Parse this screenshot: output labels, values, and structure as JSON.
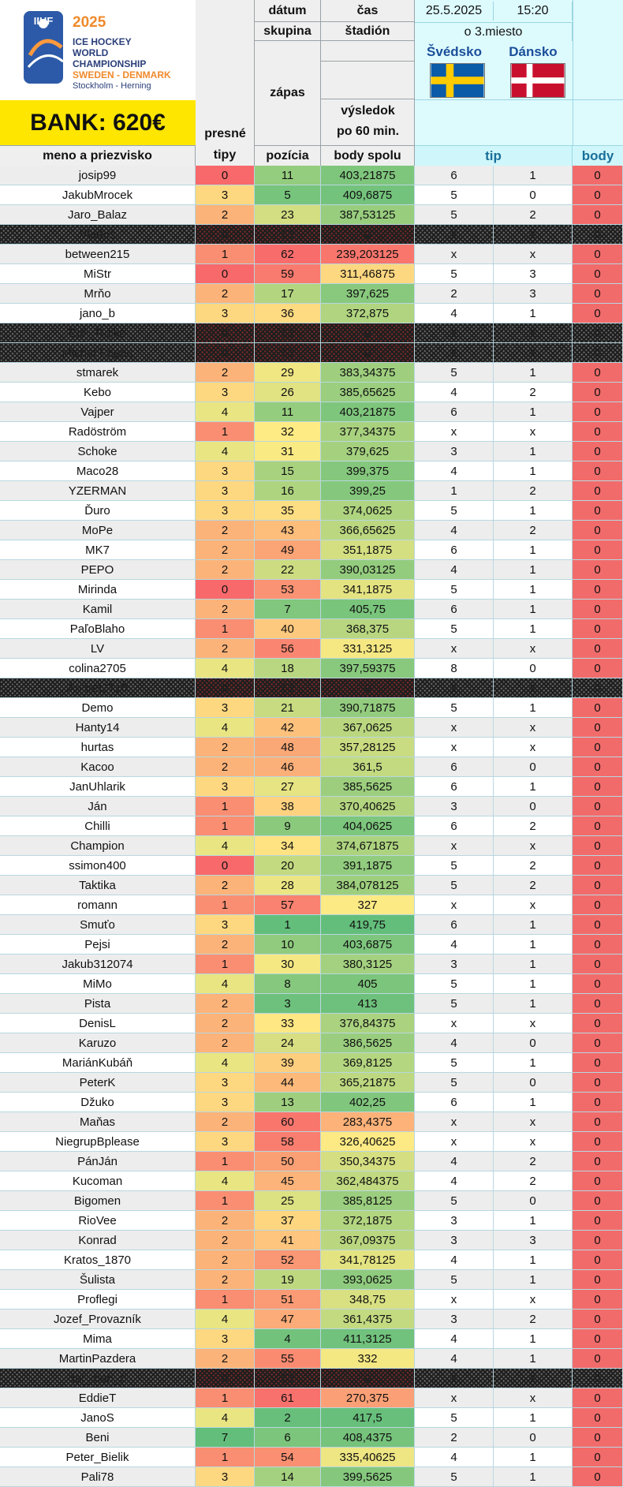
{
  "logo": {
    "org": "IIHF",
    "year": "2025",
    "line1": "ICE HOCKEY",
    "line2": "WORLD",
    "line3": "CHAMPIONSHIP",
    "line4": "SWEDEN - DENMARK",
    "line5": "Stockholm - Herning"
  },
  "bank": "BANK: 620€",
  "header": {
    "datum_label": "dátum",
    "cas_label": "čas",
    "skupina_label": "skupina",
    "stadion_label": "štadión",
    "zapas_label": "zápas",
    "vysledok_label_1": "výsledok",
    "vysledok_label_2": "po 60 min.",
    "presne_label_1": "presné",
    "presne_label_2": "tipy",
    "date_value": "25.5.2025",
    "time_value": "15:20",
    "group_value": "o 3.miesto",
    "team1": "Švédsko",
    "team2": "Dánsko",
    "col_name": "meno a priezvisko",
    "col_tipy": "tipy",
    "col_pozicia": "pozícia",
    "col_body_spolu": "body spolu",
    "col_tip": "tip",
    "col_body": "body"
  },
  "colors": {
    "bank_bg": "#ffe600",
    "body_red": "#f26b6b",
    "header_cyan": "#cff7fb",
    "header_text": "#1a6f9a",
    "sweden_blue": "#0a5ba8",
    "sweden_yellow": "#fecb00",
    "denmark_red": "#c8102e"
  },
  "rows": [
    {
      "name": "josip99",
      "exact": "0",
      "pos": "11",
      "pts": "403,21875",
      "t1": "6",
      "t2": "1",
      "body": "0"
    },
    {
      "name": "JakubMrocek",
      "exact": "3",
      "pos": "5",
      "pts": "409,6875",
      "t1": "5",
      "t2": "0",
      "body": "0"
    },
    {
      "name": "Jaro_Balaz",
      "exact": "2",
      "pos": "23",
      "pts": "387,53125",
      "t1": "5",
      "t2": "2",
      "body": "0"
    },
    {
      "name": "Vladoš",
      "exact": "0",
      "pos": "63",
      "pts": "0",
      "t1": "x",
      "t2": "x",
      "body": "0",
      "checker": true
    },
    {
      "name": "between215",
      "exact": "1",
      "pos": "62",
      "pts": "239,203125",
      "t1": "x",
      "t2": "x",
      "body": "0"
    },
    {
      "name": "MiStr",
      "exact": "0",
      "pos": "59",
      "pts": "311,46875",
      "t1": "5",
      "t2": "3",
      "body": "0"
    },
    {
      "name": "Mrňo",
      "exact": "2",
      "pos": "17",
      "pts": "397,625",
      "t1": "2",
      "t2": "3",
      "body": "0"
    },
    {
      "name": "jano_b",
      "exact": "3",
      "pos": "36",
      "pts": "372,875",
      "t1": "4",
      "t2": "1",
      "body": "0"
    },
    {
      "name": "Erik_Rojko",
      "exact": "0",
      "pos": "63",
      "pts": "0",
      "t1": "x",
      "t2": "x",
      "body": "0",
      "checker": true
    },
    {
      "name": "Michal Pagac",
      "exact": "0",
      "pos": "63",
      "pts": "0",
      "t1": "x",
      "t2": "x",
      "body": "0",
      "checker": true
    },
    {
      "name": "stmarek",
      "exact": "2",
      "pos": "29",
      "pts": "383,34375",
      "t1": "5",
      "t2": "1",
      "body": "0"
    },
    {
      "name": "Kebo",
      "exact": "3",
      "pos": "26",
      "pts": "385,65625",
      "t1": "4",
      "t2": "2",
      "body": "0"
    },
    {
      "name": "Vajper",
      "exact": "4",
      "pos": "11",
      "pts": "403,21875",
      "t1": "6",
      "t2": "1",
      "body": "0"
    },
    {
      "name": "Radöström",
      "exact": "1",
      "pos": "32",
      "pts": "377,34375",
      "t1": "x",
      "t2": "x",
      "body": "0"
    },
    {
      "name": "Schoke",
      "exact": "4",
      "pos": "31",
      "pts": "379,625",
      "t1": "3",
      "t2": "1",
      "body": "0"
    },
    {
      "name": "Maco28",
      "exact": "3",
      "pos": "15",
      "pts": "399,375",
      "t1": "4",
      "t2": "1",
      "body": "0"
    },
    {
      "name": "YZERMAN",
      "exact": "3",
      "pos": "16",
      "pts": "399,25",
      "t1": "1",
      "t2": "2",
      "body": "0"
    },
    {
      "name": "Ďuro",
      "exact": "3",
      "pos": "35",
      "pts": "374,0625",
      "t1": "5",
      "t2": "1",
      "body": "0"
    },
    {
      "name": "MoPe",
      "exact": "2",
      "pos": "43",
      "pts": "366,65625",
      "t1": "4",
      "t2": "2",
      "body": "0"
    },
    {
      "name": "MK7",
      "exact": "2",
      "pos": "49",
      "pts": "351,1875",
      "t1": "6",
      "t2": "1",
      "body": "0"
    },
    {
      "name": "PEPO",
      "exact": "2",
      "pos": "22",
      "pts": "390,03125",
      "t1": "4",
      "t2": "1",
      "body": "0"
    },
    {
      "name": "Mirinda",
      "exact": "0",
      "pos": "53",
      "pts": "341,1875",
      "t1": "5",
      "t2": "1",
      "body": "0"
    },
    {
      "name": "Kamil",
      "exact": "2",
      "pos": "7",
      "pts": "405,75",
      "t1": "6",
      "t2": "1",
      "body": "0"
    },
    {
      "name": "PaľoBlaho",
      "exact": "1",
      "pos": "40",
      "pts": "368,375",
      "t1": "5",
      "t2": "1",
      "body": "0"
    },
    {
      "name": "LV",
      "exact": "2",
      "pos": "56",
      "pts": "331,3125",
      "t1": "x",
      "t2": "x",
      "body": "0"
    },
    {
      "name": "colina2705",
      "exact": "4",
      "pos": "18",
      "pts": "397,59375",
      "t1": "8",
      "t2": "0",
      "body": "0"
    },
    {
      "name": "Andrej2710",
      "exact": "0",
      "pos": "63",
      "pts": "0",
      "t1": "x",
      "t2": "x",
      "body": "0",
      "checker": true
    },
    {
      "name": "Demo",
      "exact": "3",
      "pos": "21",
      "pts": "390,71875",
      "t1": "5",
      "t2": "1",
      "body": "0"
    },
    {
      "name": "Hanty14",
      "exact": "4",
      "pos": "42",
      "pts": "367,0625",
      "t1": "x",
      "t2": "x",
      "body": "0"
    },
    {
      "name": "hurtas",
      "exact": "2",
      "pos": "48",
      "pts": "357,28125",
      "t1": "x",
      "t2": "x",
      "body": "0"
    },
    {
      "name": "Kacoo",
      "exact": "2",
      "pos": "46",
      "pts": "361,5",
      "t1": "6",
      "t2": "0",
      "body": "0"
    },
    {
      "name": "JanUhlarik",
      "exact": "3",
      "pos": "27",
      "pts": "385,5625",
      "t1": "6",
      "t2": "1",
      "body": "0"
    },
    {
      "name": "Ján",
      "exact": "1",
      "pos": "38",
      "pts": "370,40625",
      "t1": "3",
      "t2": "0",
      "body": "0"
    },
    {
      "name": "Chilli",
      "exact": "1",
      "pos": "9",
      "pts": "404,0625",
      "t1": "6",
      "t2": "2",
      "body": "0"
    },
    {
      "name": "Champion",
      "exact": "4",
      "pos": "34",
      "pts": "374,671875",
      "t1": "x",
      "t2": "x",
      "body": "0"
    },
    {
      "name": "ssimon400",
      "exact": "0",
      "pos": "20",
      "pts": "391,1875",
      "t1": "5",
      "t2": "2",
      "body": "0"
    },
    {
      "name": "Taktika",
      "exact": "2",
      "pos": "28",
      "pts": "384,078125",
      "t1": "5",
      "t2": "2",
      "body": "0"
    },
    {
      "name": "romann",
      "exact": "1",
      "pos": "57",
      "pts": "327",
      "t1": "x",
      "t2": "x",
      "body": "0"
    },
    {
      "name": "Smuťo",
      "exact": "3",
      "pos": "1",
      "pts": "419,75",
      "t1": "6",
      "t2": "1",
      "body": "0"
    },
    {
      "name": "Pejsi",
      "exact": "2",
      "pos": "10",
      "pts": "403,6875",
      "t1": "4",
      "t2": "1",
      "body": "0"
    },
    {
      "name": "Jakub312074",
      "exact": "1",
      "pos": "30",
      "pts": "380,3125",
      "t1": "3",
      "t2": "1",
      "body": "0"
    },
    {
      "name": "MiMo",
      "exact": "4",
      "pos": "8",
      "pts": "405",
      "t1": "5",
      "t2": "1",
      "body": "0"
    },
    {
      "name": "Pista",
      "exact": "2",
      "pos": "3",
      "pts": "413",
      "t1": "5",
      "t2": "1",
      "body": "0"
    },
    {
      "name": "DenisL",
      "exact": "2",
      "pos": "33",
      "pts": "376,84375",
      "t1": "x",
      "t2": "x",
      "body": "0"
    },
    {
      "name": "Karuzo",
      "exact": "2",
      "pos": "24",
      "pts": "386,5625",
      "t1": "4",
      "t2": "0",
      "body": "0"
    },
    {
      "name": "MariánKubáň",
      "exact": "4",
      "pos": "39",
      "pts": "369,8125",
      "t1": "5",
      "t2": "1",
      "body": "0"
    },
    {
      "name": "PeterK",
      "exact": "3",
      "pos": "44",
      "pts": "365,21875",
      "t1": "5",
      "t2": "0",
      "body": "0"
    },
    {
      "name": "Džuko",
      "exact": "3",
      "pos": "13",
      "pts": "402,25",
      "t1": "6",
      "t2": "1",
      "body": "0"
    },
    {
      "name": "Maňas",
      "exact": "2",
      "pos": "60",
      "pts": "283,4375",
      "t1": "x",
      "t2": "x",
      "body": "0"
    },
    {
      "name": "NiegrupBplease",
      "exact": "3",
      "pos": "58",
      "pts": "326,40625",
      "t1": "x",
      "t2": "x",
      "body": "0"
    },
    {
      "name": "PánJán",
      "exact": "1",
      "pos": "50",
      "pts": "350,34375",
      "t1": "4",
      "t2": "2",
      "body": "0"
    },
    {
      "name": "Kucoman",
      "exact": "4",
      "pos": "45",
      "pts": "362,484375",
      "t1": "4",
      "t2": "2",
      "body": "0"
    },
    {
      "name": "Bigomen",
      "exact": "1",
      "pos": "25",
      "pts": "385,8125",
      "t1": "5",
      "t2": "0",
      "body": "0"
    },
    {
      "name": "RioVee",
      "exact": "2",
      "pos": "37",
      "pts": "372,1875",
      "t1": "3",
      "t2": "1",
      "body": "0"
    },
    {
      "name": "Konrad",
      "exact": "2",
      "pos": "41",
      "pts": "367,09375",
      "t1": "3",
      "t2": "3",
      "body": "0"
    },
    {
      "name": "Kratos_1870",
      "exact": "2",
      "pos": "52",
      "pts": "341,78125",
      "t1": "4",
      "t2": "1",
      "body": "0"
    },
    {
      "name": "Šulista",
      "exact": "2",
      "pos": "19",
      "pts": "393,0625",
      "t1": "5",
      "t2": "1",
      "body": "0"
    },
    {
      "name": "Proflegi",
      "exact": "1",
      "pos": "51",
      "pts": "348,75",
      "t1": "x",
      "t2": "x",
      "body": "0"
    },
    {
      "name": "Jozef_Provazník",
      "exact": "4",
      "pos": "47",
      "pts": "361,4375",
      "t1": "3",
      "t2": "2",
      "body": "0"
    },
    {
      "name": "Mima",
      "exact": "3",
      "pos": "4",
      "pts": "411,3125",
      "t1": "4",
      "t2": "1",
      "body": "0"
    },
    {
      "name": "MartinPazdera",
      "exact": "2",
      "pos": "55",
      "pts": "332",
      "t1": "4",
      "t2": "1",
      "body": "0"
    },
    {
      "name": "daj_mon_d",
      "exact": "0",
      "pos": "63",
      "pts": "0",
      "t1": "x",
      "t2": "x",
      "body": "0",
      "checker": true
    },
    {
      "name": "EddieT",
      "exact": "1",
      "pos": "61",
      "pts": "270,375",
      "t1": "x",
      "t2": "x",
      "body": "0"
    },
    {
      "name": "JanoS",
      "exact": "4",
      "pos": "2",
      "pts": "417,5",
      "t1": "5",
      "t2": "1",
      "body": "0"
    },
    {
      "name": "Beni",
      "exact": "7",
      "pos": "6",
      "pts": "408,4375",
      "t1": "2",
      "t2": "0",
      "body": "0"
    },
    {
      "name": "Peter_Bielik",
      "exact": "1",
      "pos": "54",
      "pts": "335,40625",
      "t1": "4",
      "t2": "1",
      "body": "0"
    },
    {
      "name": "Pali78",
      "exact": "3",
      "pos": "14",
      "pts": "399,5625",
      "t1": "5",
      "t2": "1",
      "body": "0"
    }
  ]
}
